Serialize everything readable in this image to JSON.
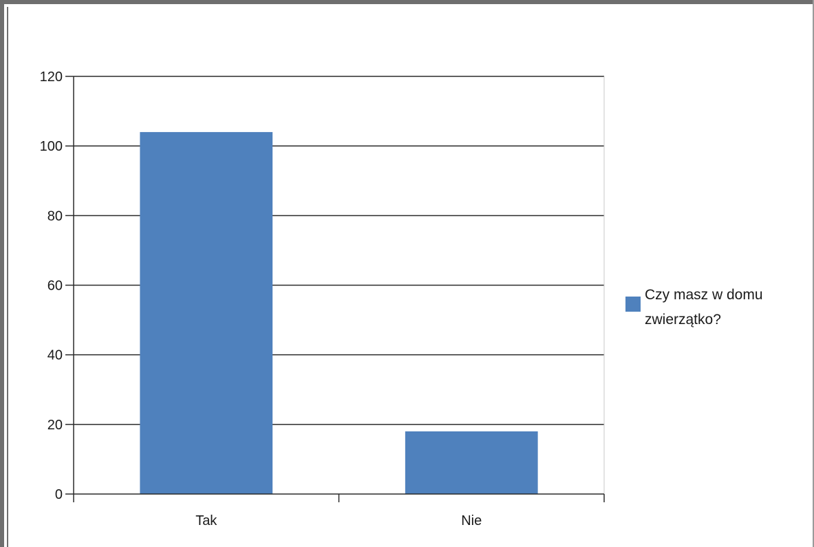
{
  "chart_data": {
    "type": "bar",
    "categories": [
      "Tak",
      "Nie"
    ],
    "series": [
      {
        "name": "Czy masz w domu zwierzątko?",
        "values": [
          104,
          18
        ],
        "color": "#4f81bd"
      }
    ],
    "ylim": [
      0,
      120
    ],
    "yticks": [
      0,
      20,
      40,
      60,
      80,
      100,
      120
    ],
    "title": "",
    "xlabel": "",
    "ylabel": "",
    "grid": true,
    "legend_position": "right",
    "legend_lines": [
      "Czy masz w domu",
      "zwierzątko?"
    ]
  }
}
